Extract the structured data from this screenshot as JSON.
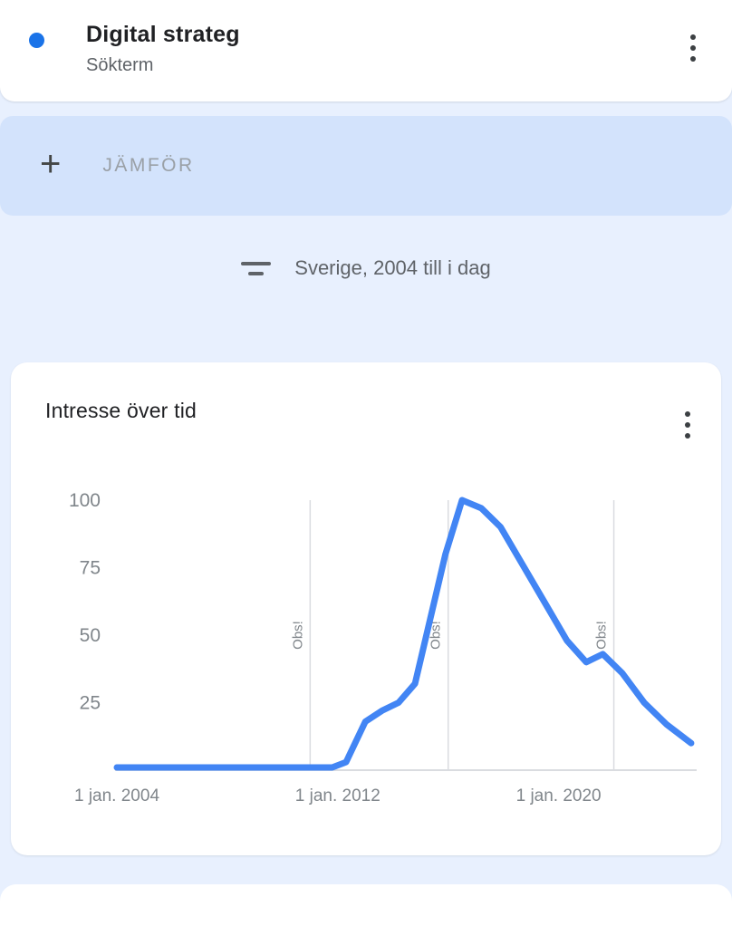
{
  "colors": {
    "page_bg": "#e8f0fe",
    "card_bg": "#ffffff",
    "compare_bg": "#d3e3fc",
    "accent_blue": "#1a73e8"
  },
  "term_card": {
    "term": "Digital strateg",
    "term_type": "Sökterm"
  },
  "compare_bar": {
    "plus_glyph": "+",
    "label": "JÄMFÖR"
  },
  "filter_bar": {
    "summary": "Sverige, 2004 till i dag"
  },
  "chart_data": {
    "type": "line",
    "title": "Intresse över tid",
    "series_name": "Digital strateg",
    "xlim": [
      2004,
      2025
    ],
    "ylim": [
      0,
      100
    ],
    "yticks": [
      25,
      50,
      75,
      100
    ],
    "xticks": [
      {
        "label": "1 jan. 2004",
        "x": 2004
      },
      {
        "label": "1 jan. 2012",
        "x": 2012
      },
      {
        "label": "1 jan. 2020",
        "x": 2020
      }
    ],
    "annotations": [
      {
        "label": "Obs!",
        "x": 2011
      },
      {
        "label": "Obs!",
        "x": 2016
      },
      {
        "label": "Obs!",
        "x": 2022
      }
    ],
    "points": [
      [
        2004,
        1
      ],
      [
        2005,
        1
      ],
      [
        2006,
        1
      ],
      [
        2007,
        1
      ],
      [
        2008,
        1
      ],
      [
        2009,
        1
      ],
      [
        2010,
        1
      ],
      [
        2011,
        1
      ],
      [
        2011.8,
        1
      ],
      [
        2012.3,
        3
      ],
      [
        2013.0,
        18
      ],
      [
        2013.6,
        22
      ],
      [
        2014.2,
        25
      ],
      [
        2014.8,
        32
      ],
      [
        2015.9,
        80
      ],
      [
        2016.5,
        100
      ],
      [
        2017.2,
        97
      ],
      [
        2017.9,
        90
      ],
      [
        2018.7,
        76
      ],
      [
        2019.5,
        62
      ],
      [
        2020.3,
        48
      ],
      [
        2021.0,
        40
      ],
      [
        2021.6,
        43
      ],
      [
        2022.3,
        36
      ],
      [
        2023.1,
        25
      ],
      [
        2023.9,
        17
      ],
      [
        2024.8,
        10
      ]
    ],
    "line_color": "#4285f4",
    "grid_color": "#dadce0",
    "tick_color": "#80868b",
    "grid": "vertical-annotation-lines-only",
    "legend": "none"
  }
}
